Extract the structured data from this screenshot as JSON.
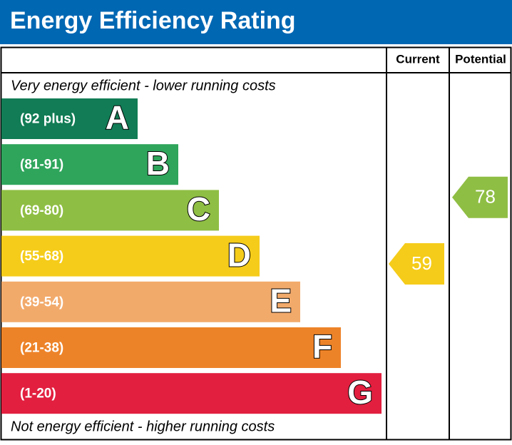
{
  "chart_data": {
    "type": "epc",
    "title": "Energy Efficiency Rating",
    "columns": [
      "Current",
      "Potential"
    ],
    "top_note": "Very energy efficient - lower running costs",
    "bottom_note": "Not energy efficient - higher running costs",
    "bands": [
      {
        "letter": "A",
        "range": "(92 plus)",
        "color": "#117c55"
      },
      {
        "letter": "B",
        "range": "(81-91)",
        "color": "#2ea55b"
      },
      {
        "letter": "C",
        "range": "(69-80)",
        "color": "#8fbe44"
      },
      {
        "letter": "D",
        "range": "(55-68)",
        "color": "#f5cc1a"
      },
      {
        "letter": "E",
        "range": "(39-54)",
        "color": "#f2aa6b"
      },
      {
        "letter": "F",
        "range": "(21-38)",
        "color": "#ed8328"
      },
      {
        "letter": "G",
        "range": "(1-20)",
        "color": "#e21f3f"
      }
    ],
    "current": 59,
    "potential": 78
  }
}
